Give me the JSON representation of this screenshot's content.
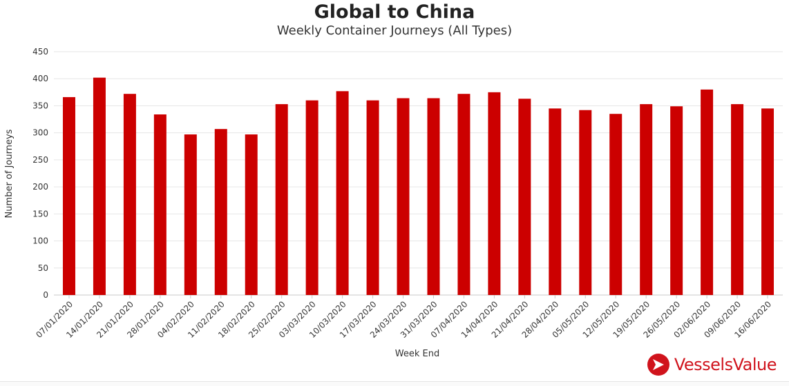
{
  "chart_data": {
    "type": "bar",
    "title": "Global to China",
    "subtitle": "Weekly Container Journeys (All Types)",
    "xlabel": "Week End",
    "ylabel": "Number of Journeys",
    "ylim": [
      0,
      450
    ],
    "yticks": [
      0,
      50,
      100,
      150,
      200,
      250,
      300,
      350,
      400,
      450
    ],
    "grid": true,
    "bar_color": "#cc0000",
    "categories": [
      "07/01/2020",
      "14/01/2020",
      "21/01/2020",
      "28/01/2020",
      "04/02/2020",
      "11/02/2020",
      "18/02/2020",
      "25/02/2020",
      "03/03/2020",
      "10/03/2020",
      "17/03/2020",
      "24/03/2020",
      "31/03/2020",
      "07/04/2020",
      "14/04/2020",
      "21/04/2020",
      "28/04/2020",
      "05/05/2020",
      "12/05/2020",
      "19/05/2020",
      "26/05/2020",
      "02/06/2020",
      "09/06/2020",
      "16/06/2020"
    ],
    "values": [
      366,
      402,
      372,
      334,
      297,
      307,
      297,
      353,
      360,
      377,
      360,
      364,
      364,
      372,
      375,
      363,
      345,
      342,
      335,
      353,
      349,
      380,
      353,
      345
    ]
  },
  "branding": {
    "logo_text": "VesselsValue",
    "brand_color": "#d0131c"
  }
}
